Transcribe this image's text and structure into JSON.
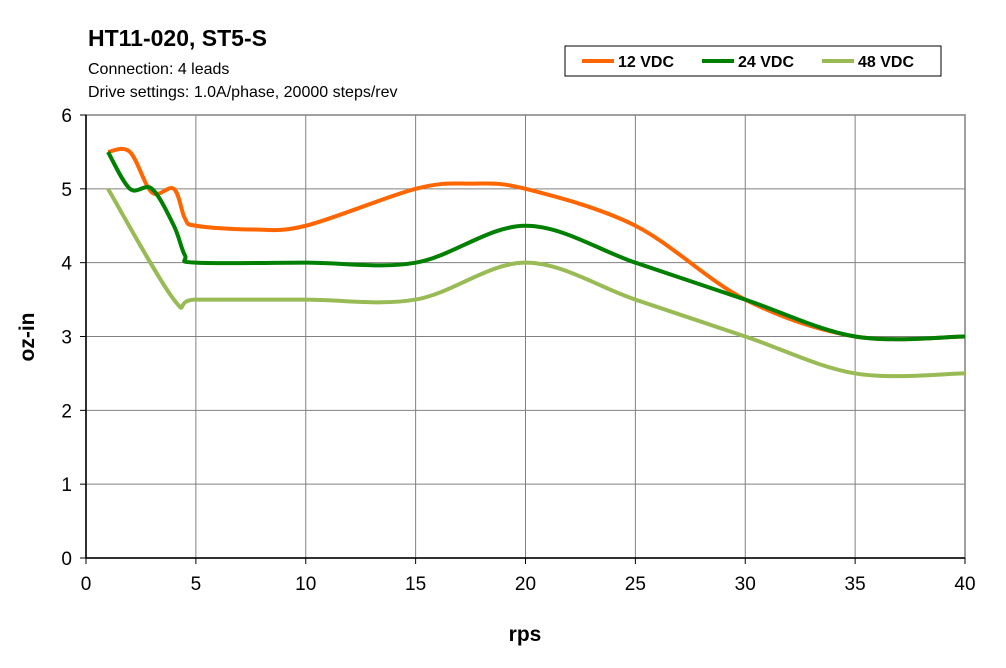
{
  "chart_data": {
    "type": "line",
    "title": "HT11-020, ST5-S",
    "subtitle_lines": [
      "Connection: 4 leads",
      "Drive settings: 1.0A/phase, 20000 steps/rev"
    ],
    "xlabel": "rps",
    "ylabel": "oz-in",
    "xlim": [
      0,
      40
    ],
    "ylim": [
      0,
      6
    ],
    "xticks": [
      0,
      5,
      10,
      15,
      20,
      25,
      30,
      35,
      40
    ],
    "yticks": [
      0,
      1,
      2,
      3,
      4,
      5,
      6
    ],
    "grid": true,
    "legend_position": "top-right",
    "series": [
      {
        "name": "12 VDC",
        "color": "#ff6600",
        "x": [
          1,
          2,
          3,
          4,
          4.5,
          5,
          7.5,
          10,
          15,
          17.5,
          20,
          25,
          30,
          35,
          40
        ],
        "y": [
          5.5,
          5.5,
          4.95,
          5.0,
          4.6,
          4.5,
          4.45,
          4.5,
          5.0,
          5.07,
          5.0,
          4.5,
          3.5,
          3.0,
          3.0
        ]
      },
      {
        "name": "24 VDC",
        "color": "#008000",
        "x": [
          1,
          2,
          3,
          4,
          4.5,
          5,
          10,
          15,
          20,
          25,
          30,
          35,
          40
        ],
        "y": [
          5.5,
          5.0,
          5.0,
          4.5,
          4.1,
          4.0,
          4.0,
          4.0,
          4.5,
          4.0,
          3.5,
          3.0,
          3.0
        ]
      },
      {
        "name": "48 VDC",
        "color": "#99bb55",
        "x": [
          1,
          4,
          5,
          10,
          15,
          20,
          25,
          30,
          35,
          40
        ],
        "y": [
          5.0,
          3.5,
          3.5,
          3.5,
          3.5,
          4.0,
          3.5,
          3.0,
          2.5,
          2.5
        ]
      }
    ]
  }
}
